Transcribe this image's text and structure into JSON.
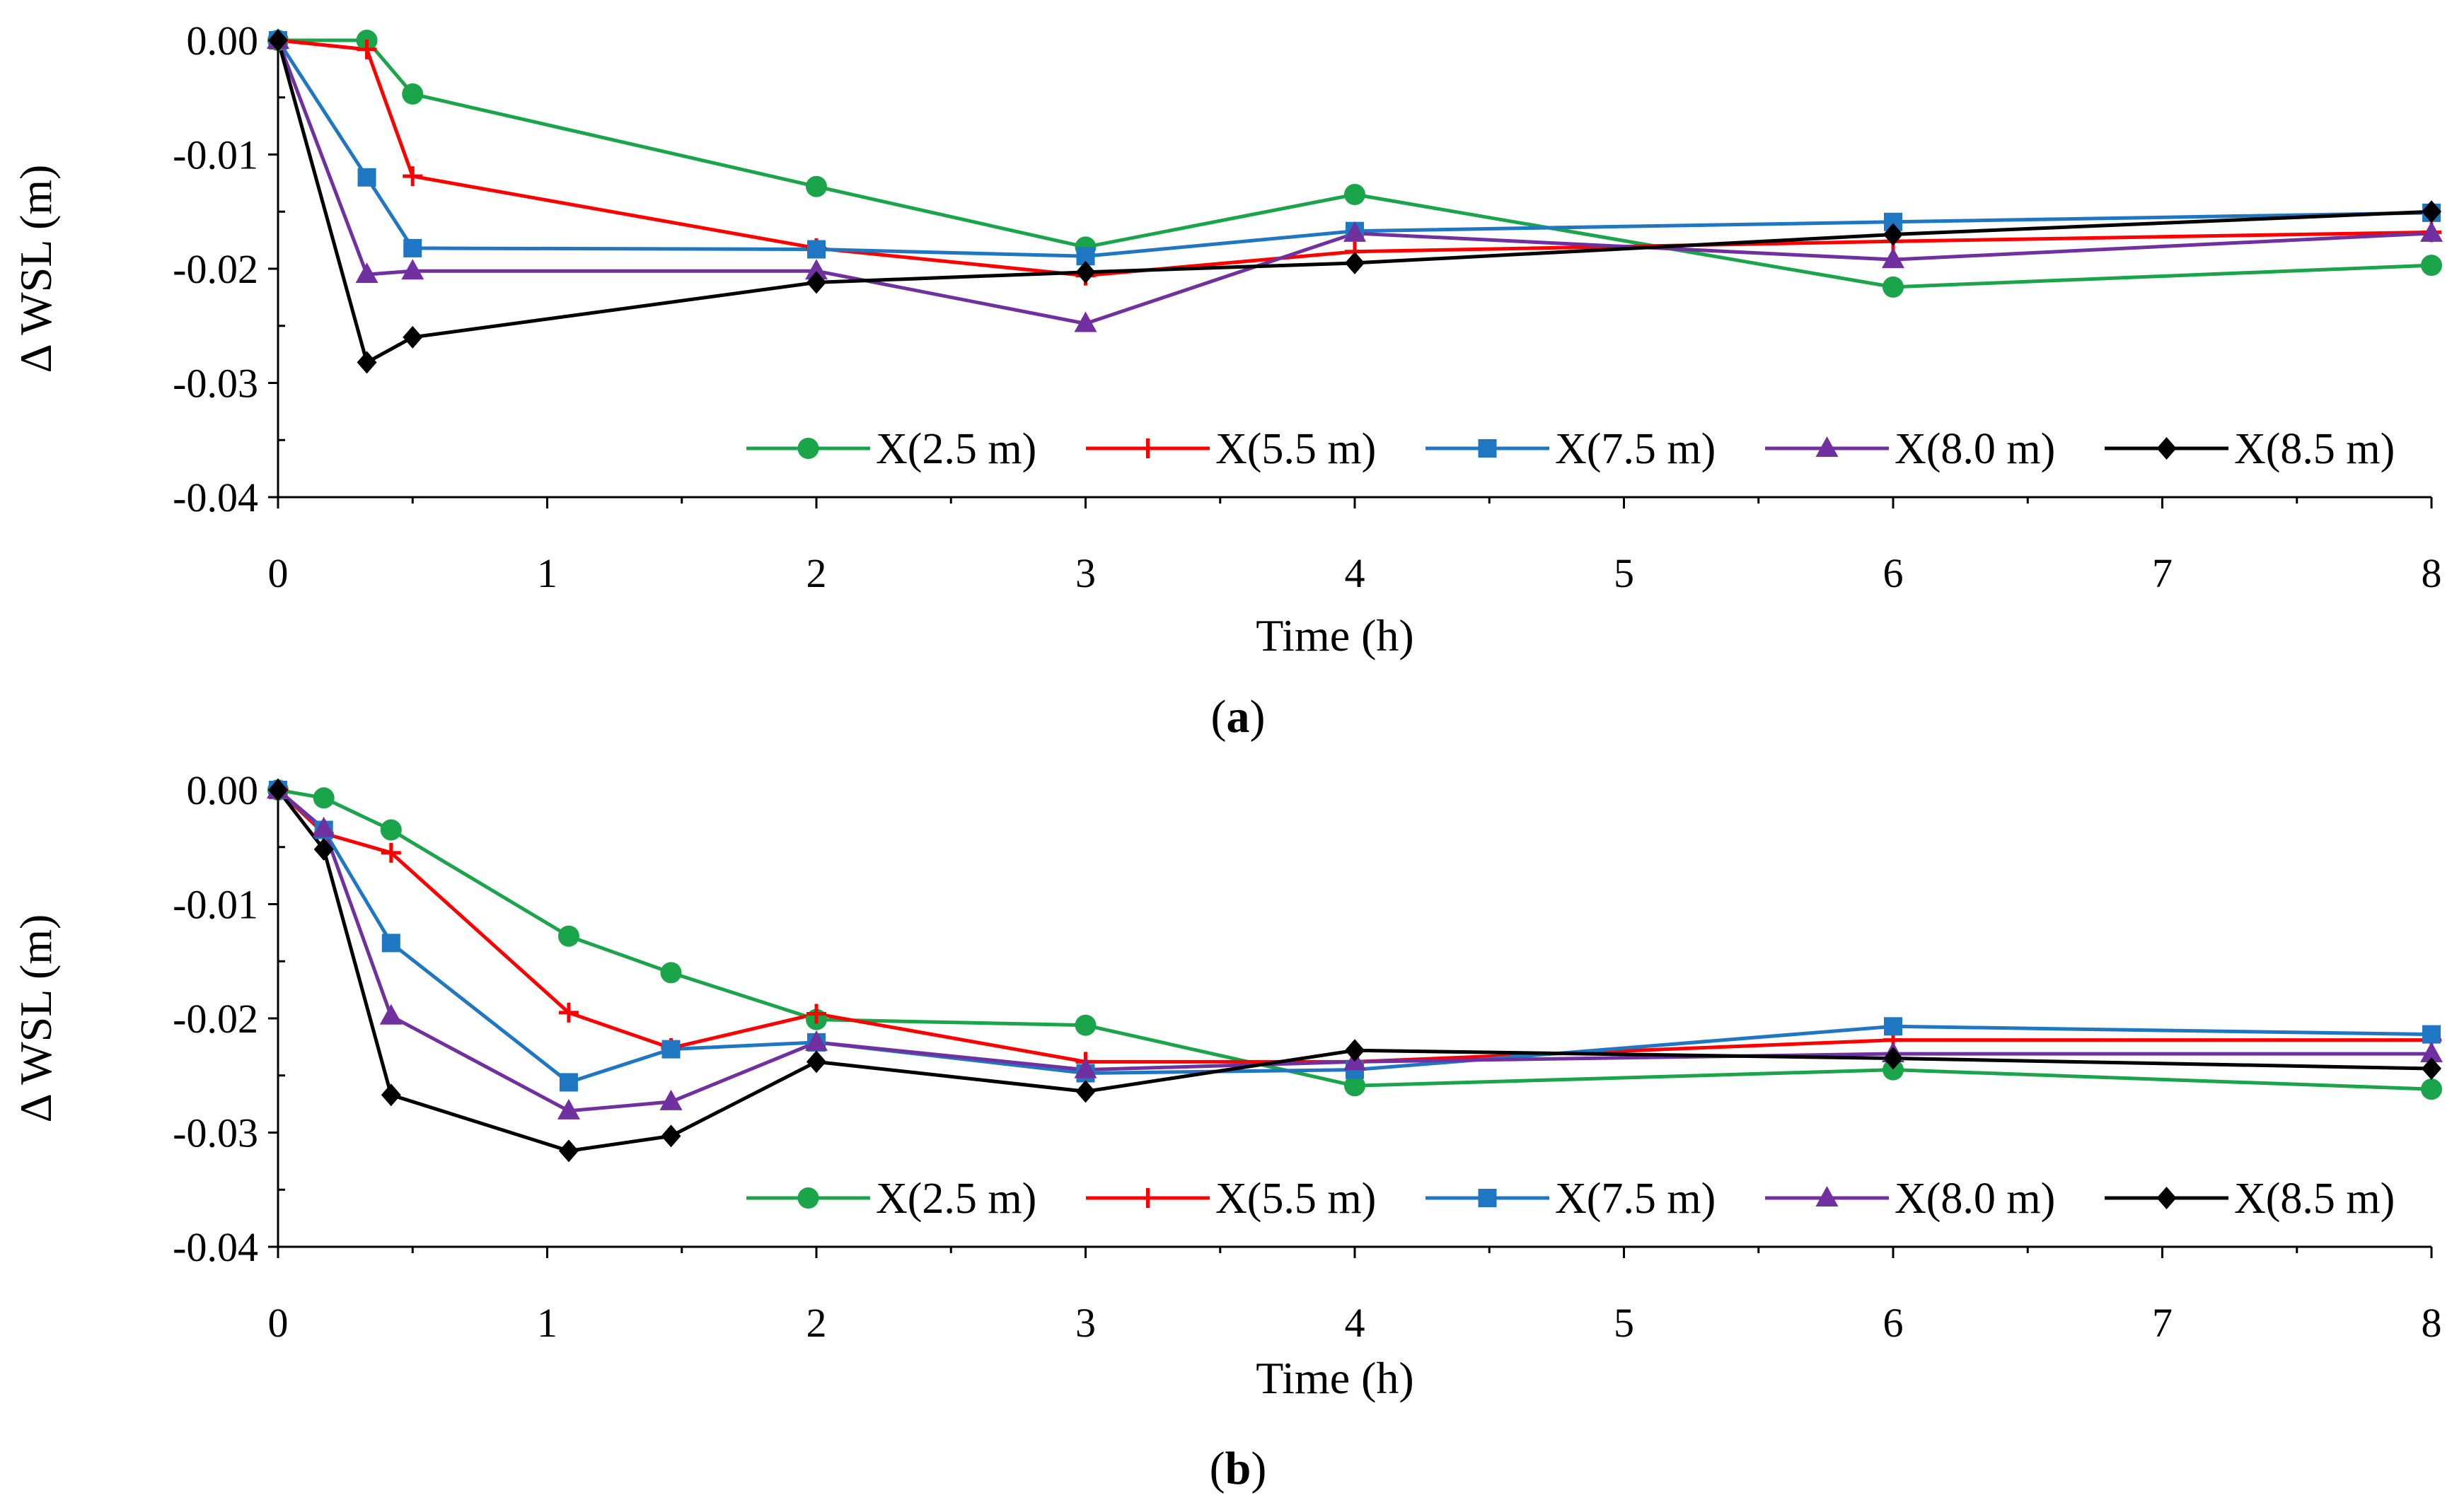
{
  "colors": {
    "axis": "#000000",
    "series": [
      "#1aa54b",
      "#ff0000",
      "#1f77c4",
      "#7030a0",
      "#000000"
    ]
  },
  "chart_data": [
    {
      "id": "a",
      "type": "line",
      "panel_label": "a",
      "title": "",
      "xlabel": "Time (h)",
      "ylabel": "Δ WSL (m)",
      "xlim": [
        0,
        8
      ],
      "ylim": [
        -0.04,
        0.0
      ],
      "xticks": [
        0,
        1,
        2,
        3,
        4,
        5,
        6,
        7,
        8
      ],
      "xtick_labels": [
        "0",
        "1",
        "2",
        "3",
        "4",
        "5",
        "6",
        "7",
        "8"
      ],
      "yticks": [
        0.0,
        -0.01,
        -0.02,
        -0.03,
        -0.04
      ],
      "ytick_labels": [
        "0.00",
        "-0.01",
        "-0.02",
        "-0.03",
        "-0.04"
      ],
      "grid": false,
      "legend_position": "bottom-right",
      "series": [
        {
          "name": "X(2.5 m)",
          "color": "#1aa54b",
          "marker": "circle",
          "x": [
            0,
            0.33,
            0.5,
            2,
            3,
            4,
            6,
            8
          ],
          "y": [
            0.0,
            0.0,
            -0.0047,
            -0.0128,
            -0.0181,
            -0.0135,
            -0.0216,
            -0.0197
          ]
        },
        {
          "name": "X(5.5 m)",
          "color": "#ff0000",
          "marker": "plus",
          "x": [
            0,
            0.33,
            0.5,
            2,
            3,
            4,
            6,
            8
          ],
          "y": [
            0.0,
            -0.0008,
            -0.0119,
            -0.0182,
            -0.0206,
            -0.0185,
            -0.0176,
            -0.0168
          ]
        },
        {
          "name": "X(7.5 m)",
          "color": "#1f77c4",
          "marker": "square",
          "x": [
            0,
            0.33,
            0.5,
            2,
            3,
            4,
            6,
            8
          ],
          "y": [
            0.0,
            -0.012,
            -0.0182,
            -0.0183,
            -0.0189,
            -0.0167,
            -0.0159,
            -0.0151
          ]
        },
        {
          "name": "X(8.0 m)",
          "color": "#7030a0",
          "marker": "triangle",
          "x": [
            0,
            0.33,
            0.5,
            2,
            3,
            4,
            6,
            8
          ],
          "y": [
            0.0,
            -0.0205,
            -0.0202,
            -0.0202,
            -0.0248,
            -0.0169,
            -0.0192,
            -0.0169
          ]
        },
        {
          "name": "X(8.5 m)",
          "color": "#000000",
          "marker": "diamond",
          "x": [
            0,
            0.33,
            0.5,
            2,
            3,
            4,
            6,
            8
          ],
          "y": [
            0.0,
            -0.0282,
            -0.026,
            -0.0212,
            -0.0203,
            -0.0195,
            -0.017,
            -0.015
          ]
        }
      ]
    },
    {
      "id": "b",
      "type": "line",
      "panel_label": "b",
      "title": "",
      "xlabel": "Time (h)",
      "ylabel": "Δ WSL (m)",
      "xlim": [
        0,
        8
      ],
      "ylim": [
        -0.04,
        0.0
      ],
      "xticks": [
        0,
        1,
        2,
        3,
        4,
        5,
        6,
        7,
        8
      ],
      "xtick_labels": [
        "0",
        "1",
        "2",
        "3",
        "4",
        "5",
        "6",
        "7",
        "8"
      ],
      "yticks": [
        0.0,
        -0.01,
        -0.02,
        -0.03,
        -0.04
      ],
      "ytick_labels": [
        "0.00",
        "-0.01",
        "-0.02",
        "-0.03",
        "-0.04"
      ],
      "grid": false,
      "legend_position": "bottom-right",
      "series": [
        {
          "name": "X(2.5 m)",
          "color": "#1aa54b",
          "marker": "circle",
          "x": [
            0,
            0.17,
            0.42,
            1.08,
            1.46,
            2,
            3,
            4,
            6,
            8
          ],
          "y": [
            0.0,
            -0.0007,
            -0.0035,
            -0.0128,
            -0.016,
            -0.0201,
            -0.0206,
            -0.0259,
            -0.0245,
            -0.0262
          ]
        },
        {
          "name": "X(5.5 m)",
          "color": "#ff0000",
          "marker": "plus",
          "x": [
            0,
            0.17,
            0.42,
            1.08,
            1.46,
            2,
            3,
            4,
            6,
            8
          ],
          "y": [
            0.0,
            -0.0038,
            -0.0055,
            -0.0195,
            -0.0226,
            -0.0196,
            -0.0238,
            -0.0238,
            -0.0219,
            -0.0219
          ]
        },
        {
          "name": "X(7.5 m)",
          "color": "#1f77c4",
          "marker": "square",
          "x": [
            0,
            0.17,
            0.42,
            1.08,
            1.46,
            2,
            3,
            4,
            6,
            8
          ],
          "y": [
            0.0,
            -0.0035,
            -0.0134,
            -0.0256,
            -0.0227,
            -0.0221,
            -0.0248,
            -0.0245,
            -0.0207,
            -0.0214
          ]
        },
        {
          "name": "X(8.0 m)",
          "color": "#7030a0",
          "marker": "triangle",
          "x": [
            0,
            0.17,
            0.42,
            1.08,
            1.46,
            2,
            3,
            4,
            6,
            8
          ],
          "y": [
            0.0,
            -0.0034,
            -0.0198,
            -0.0281,
            -0.0273,
            -0.0221,
            -0.0245,
            -0.0238,
            -0.0231,
            -0.0231
          ]
        },
        {
          "name": "X(8.5 m)",
          "color": "#000000",
          "marker": "diamond",
          "x": [
            0,
            0.17,
            0.42,
            1.08,
            1.46,
            2,
            3,
            4,
            6,
            8
          ],
          "y": [
            0.0,
            -0.0052,
            -0.0267,
            -0.0316,
            -0.0303,
            -0.0238,
            -0.0264,
            -0.0228,
            -0.0235,
            -0.0244
          ]
        }
      ]
    }
  ]
}
